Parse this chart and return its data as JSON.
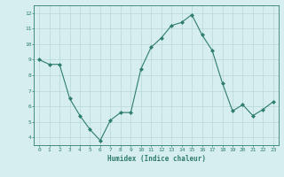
{
  "x": [
    0,
    1,
    2,
    3,
    4,
    5,
    6,
    7,
    8,
    9,
    10,
    11,
    12,
    13,
    14,
    15,
    16,
    17,
    18,
    19,
    20,
    21,
    22,
    23
  ],
  "y": [
    9.0,
    8.7,
    8.7,
    6.5,
    5.4,
    4.5,
    3.8,
    5.1,
    5.6,
    5.6,
    8.4,
    9.8,
    10.4,
    11.2,
    11.4,
    11.9,
    10.6,
    9.6,
    7.5,
    5.7,
    6.1,
    5.4,
    5.8,
    6.3
  ],
  "xlabel": "Humidex (Indice chaleur)",
  "xlim": [
    -0.5,
    23.5
  ],
  "ylim": [
    3.5,
    12.5
  ],
  "yticks": [
    4,
    5,
    6,
    7,
    8,
    9,
    10,
    11,
    12
  ],
  "xticks": [
    0,
    1,
    2,
    3,
    4,
    5,
    6,
    7,
    8,
    9,
    10,
    11,
    12,
    13,
    14,
    15,
    16,
    17,
    18,
    19,
    20,
    21,
    22,
    23
  ],
  "line_color": "#2e7d6e",
  "marker_color": "#2e7d6e",
  "bg_color": "#d6eeee",
  "grid_color": "#b8d8d8",
  "tick_color": "#2e7d6e",
  "label_color": "#2e7d6e",
  "font_family": "monospace",
  "tick_fontsize": 4.5,
  "xlabel_fontsize": 5.5
}
